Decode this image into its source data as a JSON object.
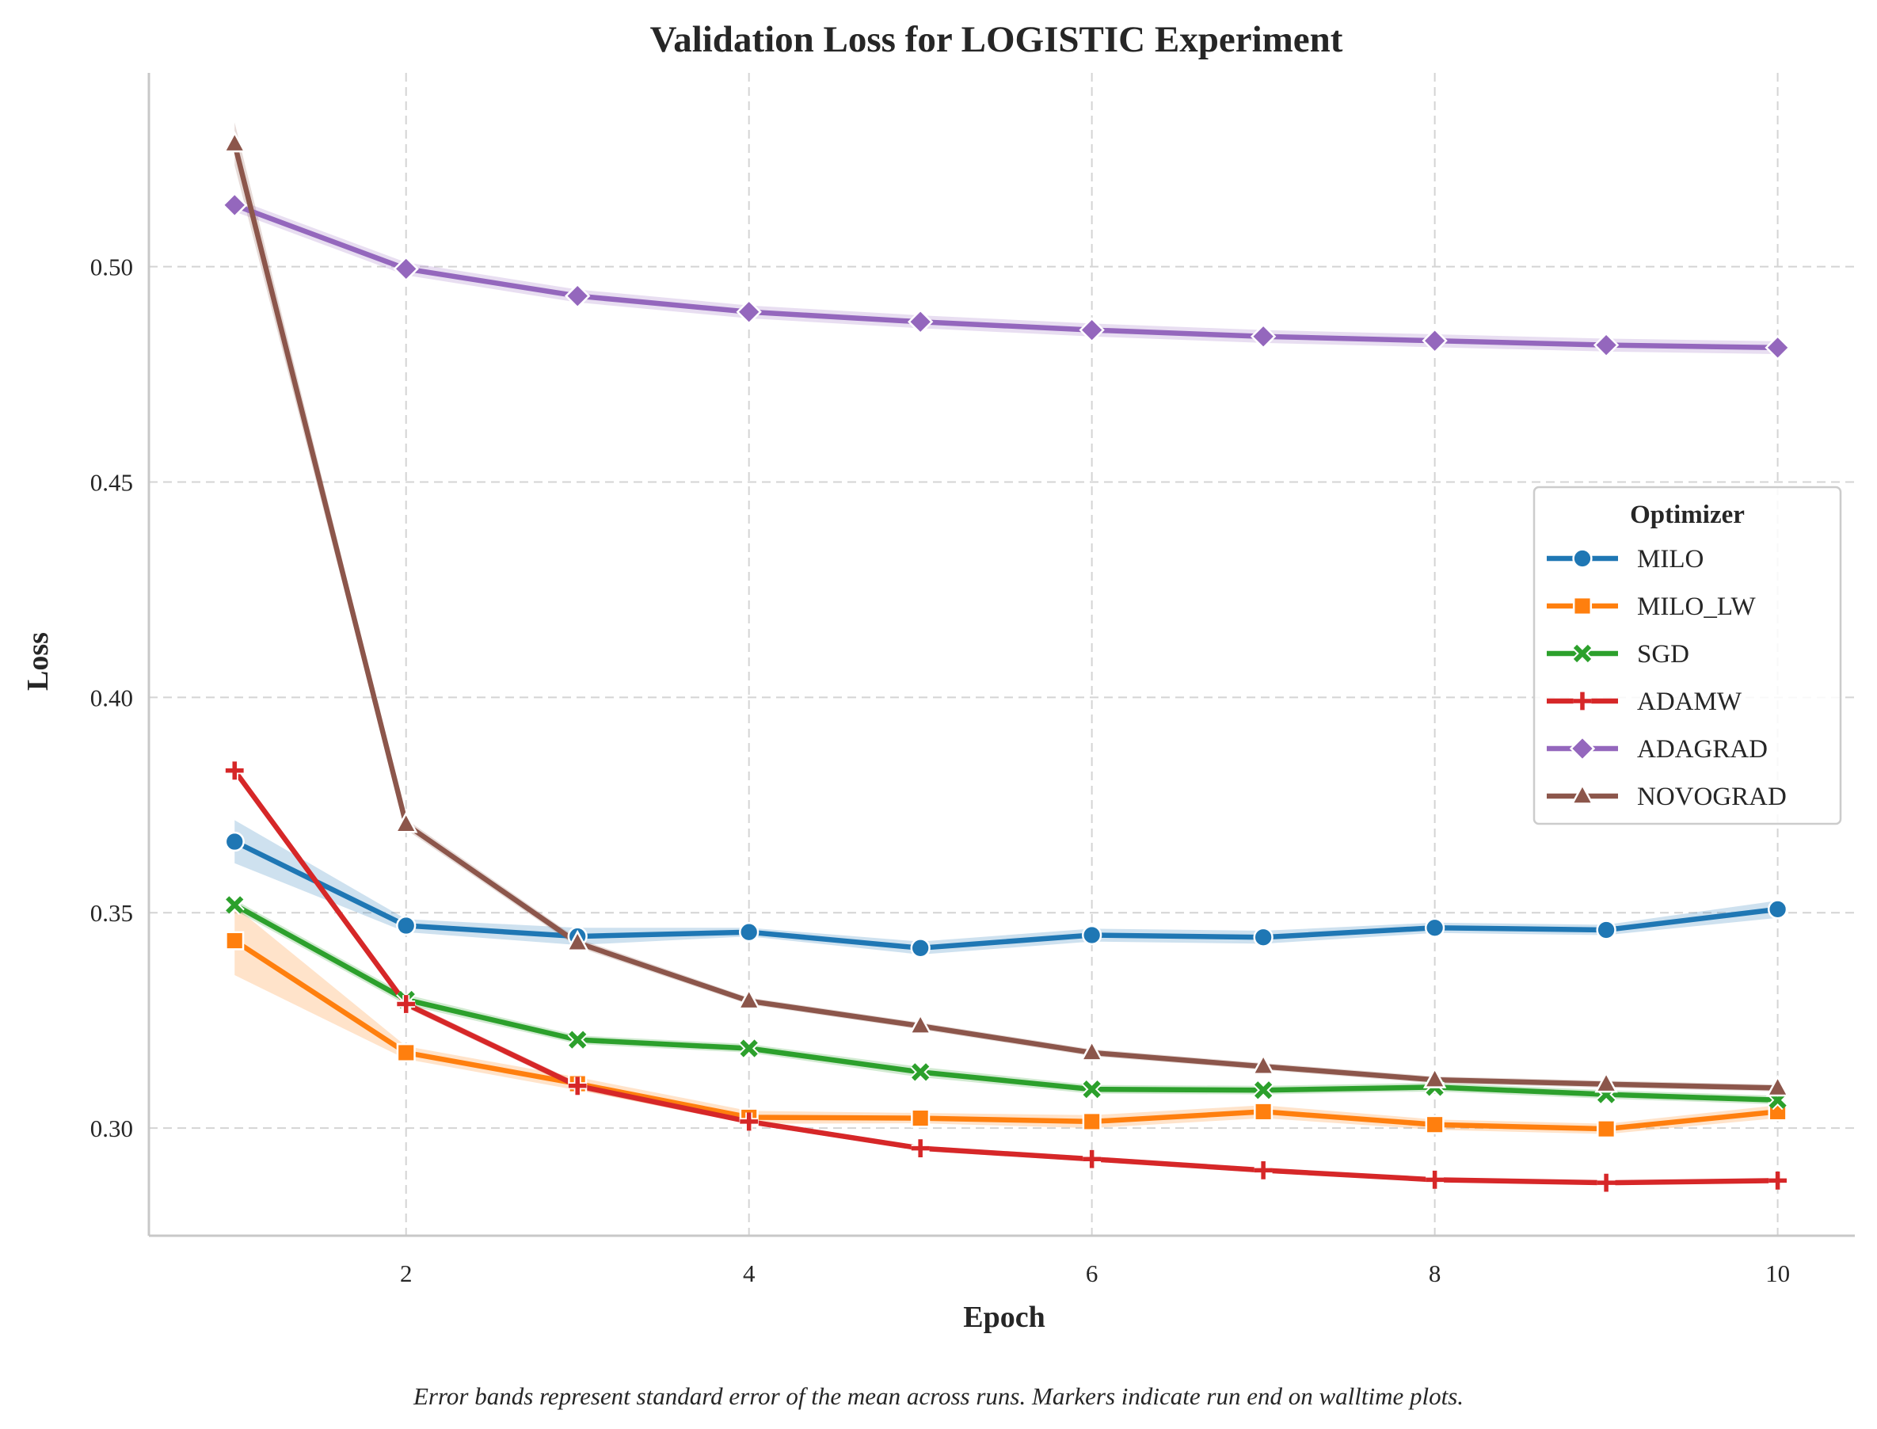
{
  "chart_data": {
    "type": "line",
    "title": "Validation Loss for LOGISTIC Experiment",
    "xlabel": "Epoch",
    "ylabel": "Loss",
    "xlim": [
      0.5,
      10.45
    ],
    "ylim": [
      0.275,
      0.545
    ],
    "xticks": [
      2,
      4,
      6,
      8,
      10
    ],
    "yticks": [
      0.3,
      0.35,
      0.4,
      0.45,
      0.5
    ],
    "ytick_labels": [
      "0.30",
      "0.35",
      "0.40",
      "0.45",
      "0.50"
    ],
    "grid": true,
    "legend": {
      "title": "Optimizer",
      "position": "center-right"
    },
    "caption": "Error bands represent standard error of the mean across runs. Markers indicate run end on walltime plots.",
    "x": [
      1,
      2,
      3,
      4,
      5,
      6,
      7,
      8,
      9,
      10
    ],
    "series": [
      {
        "name": "MILO",
        "color": "#1f77b4",
        "marker": "circle",
        "values": [
          0.3665,
          0.347,
          0.3445,
          0.3455,
          0.3418,
          0.3448,
          0.3443,
          0.3465,
          0.346,
          0.3508
        ],
        "band": [
          0.005,
          0.0015,
          0.002,
          0.001,
          0.0015,
          0.0015,
          0.0015,
          0.0012,
          0.0012,
          0.002
        ]
      },
      {
        "name": "MILO_LW",
        "color": "#ff7f0e",
        "marker": "square",
        "values": [
          0.3435,
          0.3175,
          0.3103,
          0.3025,
          0.3023,
          0.3015,
          0.3038,
          0.3008,
          0.2998,
          0.3038
        ],
        "band": [
          0.008,
          0.0015,
          0.0015,
          0.0015,
          0.0012,
          0.0015,
          0.0015,
          0.0012,
          0.0012,
          0.0015
        ]
      },
      {
        "name": "SGD",
        "color": "#2ca02c",
        "marker": "x",
        "values": [
          0.3518,
          0.3298,
          0.3205,
          0.3185,
          0.313,
          0.309,
          0.3088,
          0.3095,
          0.3078,
          0.3065
        ],
        "band": [
          0.0012,
          0.0012,
          0.001,
          0.001,
          0.0012,
          0.001,
          0.001,
          0.001,
          0.001,
          0.001
        ]
      },
      {
        "name": "ADAMW",
        "color": "#d62728",
        "marker": "plus",
        "values": [
          0.383,
          0.3288,
          0.3098,
          0.3015,
          0.2953,
          0.2928,
          0.2902,
          0.288,
          0.2873,
          0.2878
        ],
        "band": [
          0.0008,
          0.0008,
          0.0008,
          0.0006,
          0.0006,
          0.0006,
          0.0006,
          0.0005,
          0.0005,
          0.0005
        ]
      },
      {
        "name": "ADAGRAD",
        "color": "#9467bd",
        "marker": "diamond",
        "values": [
          0.5143,
          0.4995,
          0.4932,
          0.4895,
          0.4872,
          0.4853,
          0.4838,
          0.4828,
          0.4818,
          0.4812
        ],
        "band": [
          0.0015,
          0.0015,
          0.0015,
          0.0015,
          0.0015,
          0.0015,
          0.0015,
          0.0015,
          0.0015,
          0.0015
        ]
      },
      {
        "name": "NOVOGRAD",
        "color": "#8c564b",
        "marker": "triangle",
        "values": [
          0.5285,
          0.3705,
          0.343,
          0.3295,
          0.3237,
          0.3175,
          0.3143,
          0.3112,
          0.3102,
          0.3093
        ],
        "band": [
          0.005,
          0.0012,
          0.001,
          0.0008,
          0.0008,
          0.0008,
          0.0008,
          0.0008,
          0.0008,
          0.0008
        ]
      }
    ]
  }
}
